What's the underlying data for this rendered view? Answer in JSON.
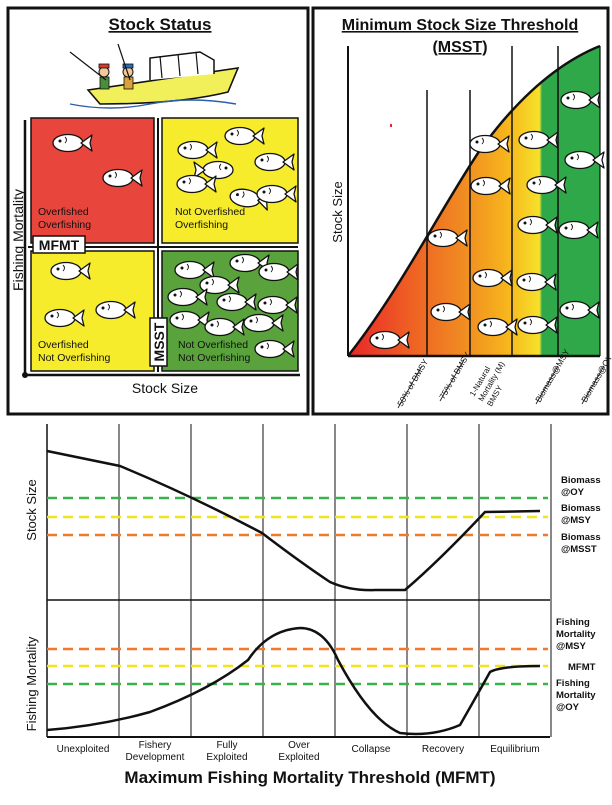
{
  "stock_status": {
    "title": "Stock Status",
    "y_axis_label": "Fishing Mortality",
    "x_axis_label": "Stock Size",
    "mfmt_label": "MFMT",
    "msst_label": "MSST",
    "quadrants": {
      "top_left": {
        "line1": "Overfished",
        "line2": "Overfishing",
        "color": "#e8453c"
      },
      "top_right": {
        "line1": "Not Overfished",
        "line2": "Overfishing",
        "color": "#f6ec2c"
      },
      "bottom_left": {
        "line1": "Overfished",
        "line2": "Not Overfishing",
        "color": "#f6ec2c"
      },
      "bottom_right": {
        "line1": "Not Overfished",
        "line2": "Not Overfishing",
        "color": "#5aa23b"
      }
    }
  },
  "msst_panel": {
    "title": "Minimum Stock Size Threshold",
    "subtitle": "(MSST)",
    "y_axis_label": "Stock Size",
    "bins": [
      "50% of BMSY",
      "75% of BMSY",
      "1-Natural Mortality (M) BMSY",
      "Biomass@MSY",
      "Biomass@OY"
    ],
    "gradient": [
      "#e8262a",
      "#f08a22",
      "#f9c81a",
      "#f6e12a",
      "#2fa84a"
    ]
  },
  "time_series": {
    "top_y_label": "Stock Size",
    "bottom_y_label": "Fishing Mortality",
    "x_title": "Maximum Fishing Mortality Threshold (MFMT)",
    "phases": [
      "Unexploited",
      "Fishery Development",
      "Fully Exploited",
      "Over Exploited",
      "Collapse",
      "Recovery",
      "Equilibrium"
    ],
    "phase_lines": [
      [
        "Unexploited"
      ],
      [
        "Fishery",
        "Development"
      ],
      [
        "Fully",
        "Exploited"
      ],
      [
        "Over",
        "Exploited"
      ],
      [
        "Collapse"
      ],
      [
        "Recovery"
      ],
      [
        "Equilibrium"
      ]
    ],
    "stock_reference_lines": [
      {
        "line1": "Biomass",
        "line2": "@OY",
        "color": "#3cb34a"
      },
      {
        "line1": "Biomass",
        "line2": "@MSY",
        "color": "#f2e31a"
      },
      {
        "line1": "Biomass",
        "line2": "@MSST",
        "color": "#f07a2a"
      }
    ],
    "mortality_reference_lines": [
      {
        "lines": [
          "Fishing",
          "Mortality",
          "@MSY"
        ],
        "color": "#f07a2a"
      },
      {
        "lines": [
          "MFMT"
        ],
        "color": "#f2e31a"
      },
      {
        "lines": [
          "Fishing",
          "Mortality",
          "@OY"
        ],
        "color": "#3cb34a"
      }
    ]
  }
}
